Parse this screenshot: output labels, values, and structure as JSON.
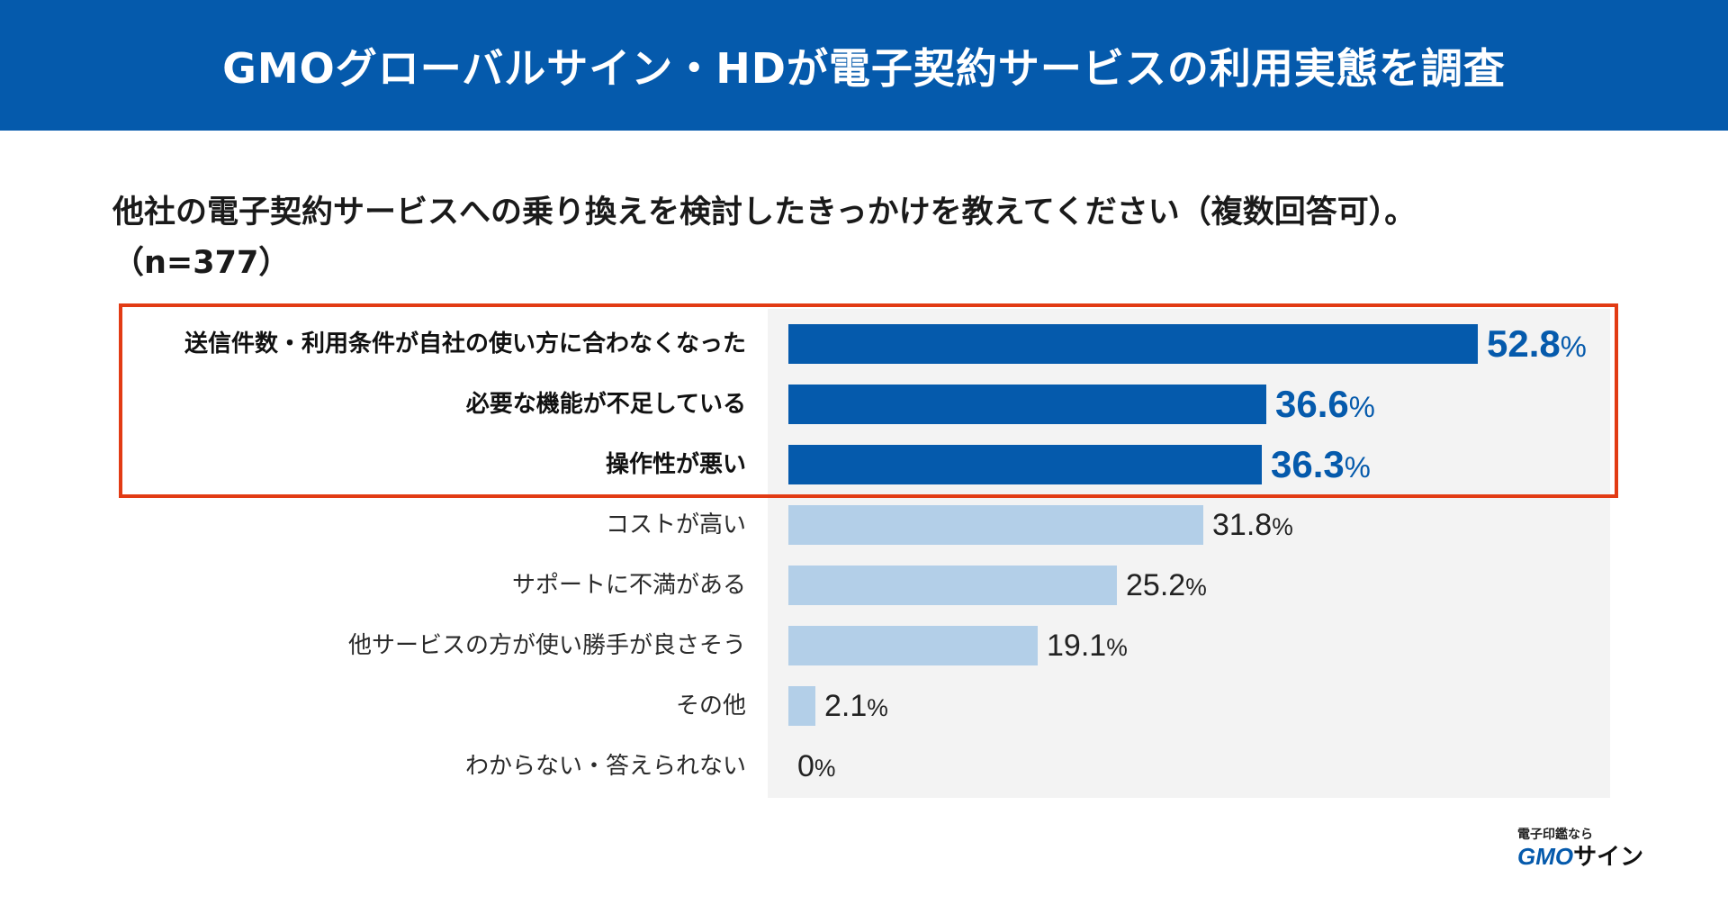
{
  "header": {
    "title": "GMOグローバルサイン・HDが電子契約サービスの利用実態を調査"
  },
  "question": {
    "text": "他社の電子契約サービスへの乗り換えを検討したきっかけを教えてください（複数回答可）。",
    "sample": "（n=377）"
  },
  "colors": {
    "header": "#055aac",
    "highlight_bar": "#055aac",
    "normal_bar": "#b3cfe8",
    "highlight_border": "#e23b14",
    "plot_background": "#f3f3f3"
  },
  "chart_data": {
    "type": "bar",
    "orientation": "horizontal",
    "unit": "%",
    "xlim": [
      0,
      100
    ],
    "categories": [
      "送信件数・利用条件が自社の使い方に合わなくなった",
      "必要な機能が不足している",
      "操作性が悪い",
      "コストが高い",
      "サポートに不満がある",
      "他サービスの方が使い勝手が良さそう",
      "その他",
      "わからない・答えられない"
    ],
    "values": [
      52.8,
      36.6,
      36.3,
      31.8,
      25.2,
      19.1,
      2.1,
      0
    ],
    "value_labels": [
      "52.8",
      "36.6",
      "36.3",
      "31.8",
      "25.2",
      "19.1",
      "2.1",
      "0"
    ],
    "highlighted": [
      true,
      true,
      true,
      false,
      false,
      false,
      false,
      false
    ]
  },
  "logo": {
    "tagline": "電子印鑑なら",
    "brand": "GMO",
    "brand_sub": "サイン"
  }
}
